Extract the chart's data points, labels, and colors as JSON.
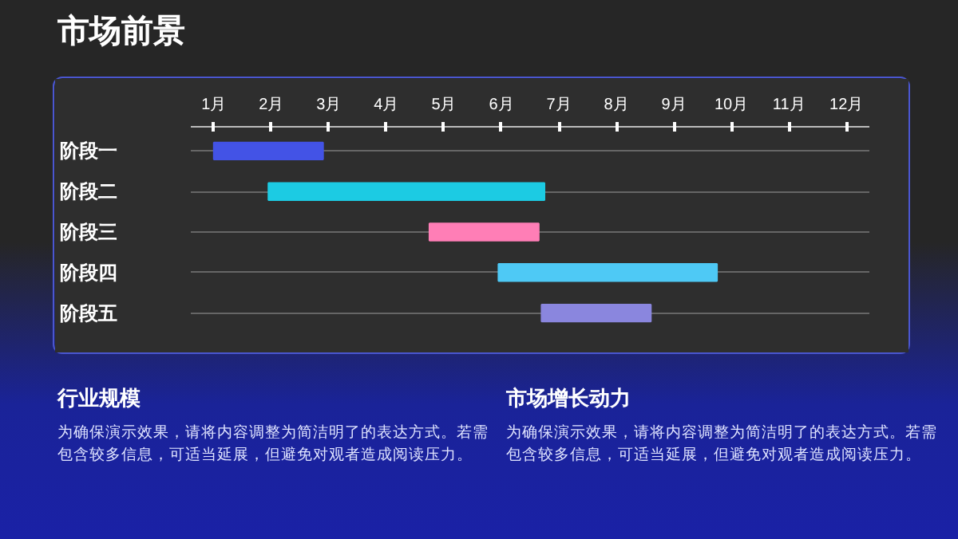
{
  "chart_data": {
    "type": "bar",
    "orientation": "horizontal",
    "title": "市场前景",
    "categories": [
      "阶段一",
      "阶段二",
      "阶段三",
      "阶段四",
      "阶段五"
    ],
    "base": [
      1,
      1.95,
      4.75,
      5.95,
      6.7
    ],
    "values": [
      1.9,
      4.8,
      1.9,
      3.8,
      1.9
    ],
    "colors": [
      "#4353e6",
      "#1ccbe3",
      "#ff7eb6",
      "#4ec9f5",
      "#8a86de"
    ],
    "xlim": [
      0.6,
      12.4
    ],
    "xticks": [
      {
        "value": 1,
        "label": "1月"
      },
      {
        "value": 2,
        "label": "2月"
      },
      {
        "value": 3,
        "label": "3月"
      },
      {
        "value": 4,
        "label": "4月"
      },
      {
        "value": 5,
        "label": "5月"
      },
      {
        "value": 6,
        "label": "6月"
      },
      {
        "value": 7,
        "label": "7月"
      },
      {
        "value": 8,
        "label": "8月"
      },
      {
        "value": 9,
        "label": "9月"
      },
      {
        "value": 10,
        "label": "10月"
      },
      {
        "value": 11,
        "label": "11月"
      },
      {
        "value": 12,
        "label": "12月"
      }
    ],
    "grid": "y",
    "annotations": [
      "行业规模",
      "为确保演示效果，请将内容调整为简洁明了的表达方式。若需包含较多信息，可适当延展，但避免对观者造成阅读压力。",
      "市场增长动力",
      "为确保演示效果，请将内容调整为简洁明了的表达方式。若需包含较多信息，可适当延展，但避免对观者造成阅读压力。"
    ]
  }
}
